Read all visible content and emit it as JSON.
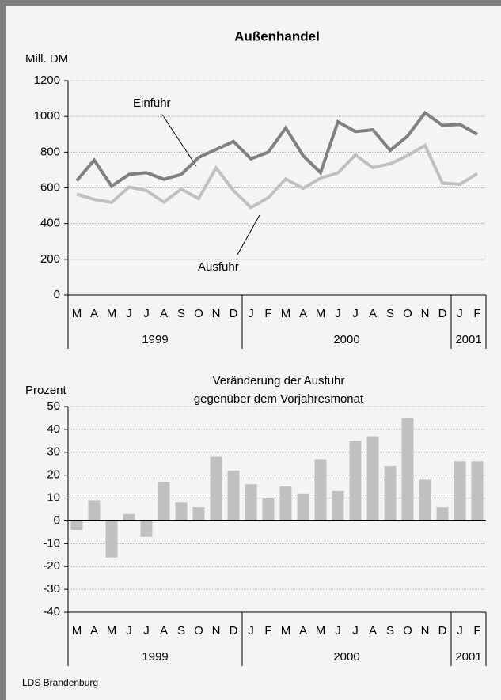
{
  "chart_data": [
    {
      "type": "line",
      "title": "Außenhandel",
      "y_label": "Mill. DM",
      "categories": [
        "M",
        "A",
        "M",
        "J",
        "J",
        "A",
        "S",
        "O",
        "N",
        "D",
        "J",
        "F",
        "M",
        "A",
        "M",
        "J",
        "J",
        "A",
        "S",
        "O",
        "N",
        "D",
        "J",
        "F"
      ],
      "groups": [
        {
          "label": "1999",
          "count": 10
        },
        {
          "label": "2000",
          "count": 12
        },
        {
          "label": "2001",
          "count": 2
        }
      ],
      "series": [
        {
          "name": "Einfuhr",
          "color": "#808080",
          "values": [
            640,
            755,
            610,
            675,
            685,
            648,
            675,
            770,
            815,
            860,
            762,
            800,
            935,
            780,
            685,
            970,
            915,
            925,
            810,
            890,
            1020,
            950,
            955,
            900
          ]
        },
        {
          "name": "Ausfuhr",
          "color": "#c0c0c0",
          "values": [
            565,
            535,
            518,
            605,
            585,
            520,
            593,
            540,
            712,
            585,
            490,
            545,
            650,
            597,
            655,
            683,
            785,
            713,
            735,
            780,
            838,
            627,
            620,
            680
          ]
        }
      ],
      "ylim": [
        0,
        1200
      ],
      "yticks": [
        0,
        200,
        400,
        600,
        800,
        1000,
        1200
      ],
      "grid": true
    },
    {
      "type": "bar",
      "title": [
        "Veränderung der Ausfuhr",
        "gegenüber dem Vorjahresmonat"
      ],
      "y_label": "Prozent",
      "categories": [
        "M",
        "A",
        "M",
        "J",
        "J",
        "A",
        "S",
        "O",
        "N",
        "D",
        "J",
        "F",
        "M",
        "A",
        "M",
        "J",
        "J",
        "A",
        "S",
        "O",
        "N",
        "D",
        "J",
        "F"
      ],
      "groups": [
        {
          "label": "1999",
          "count": 10
        },
        {
          "label": "2000",
          "count": 12
        },
        {
          "label": "2001",
          "count": 2
        }
      ],
      "values": [
        -4,
        9,
        -16,
        3,
        -7,
        17,
        8,
        6,
        28,
        22,
        16,
        10,
        15,
        12,
        27,
        13,
        35,
        37,
        24,
        45,
        18,
        6,
        26,
        26
      ],
      "color": "#c0c0c0",
      "ylim": [
        -40,
        50
      ],
      "yticks": [
        -40,
        -30,
        -20,
        -10,
        0,
        10,
        20,
        30,
        40,
        50
      ],
      "grid": true
    }
  ],
  "source": "LDS Brandenburg"
}
